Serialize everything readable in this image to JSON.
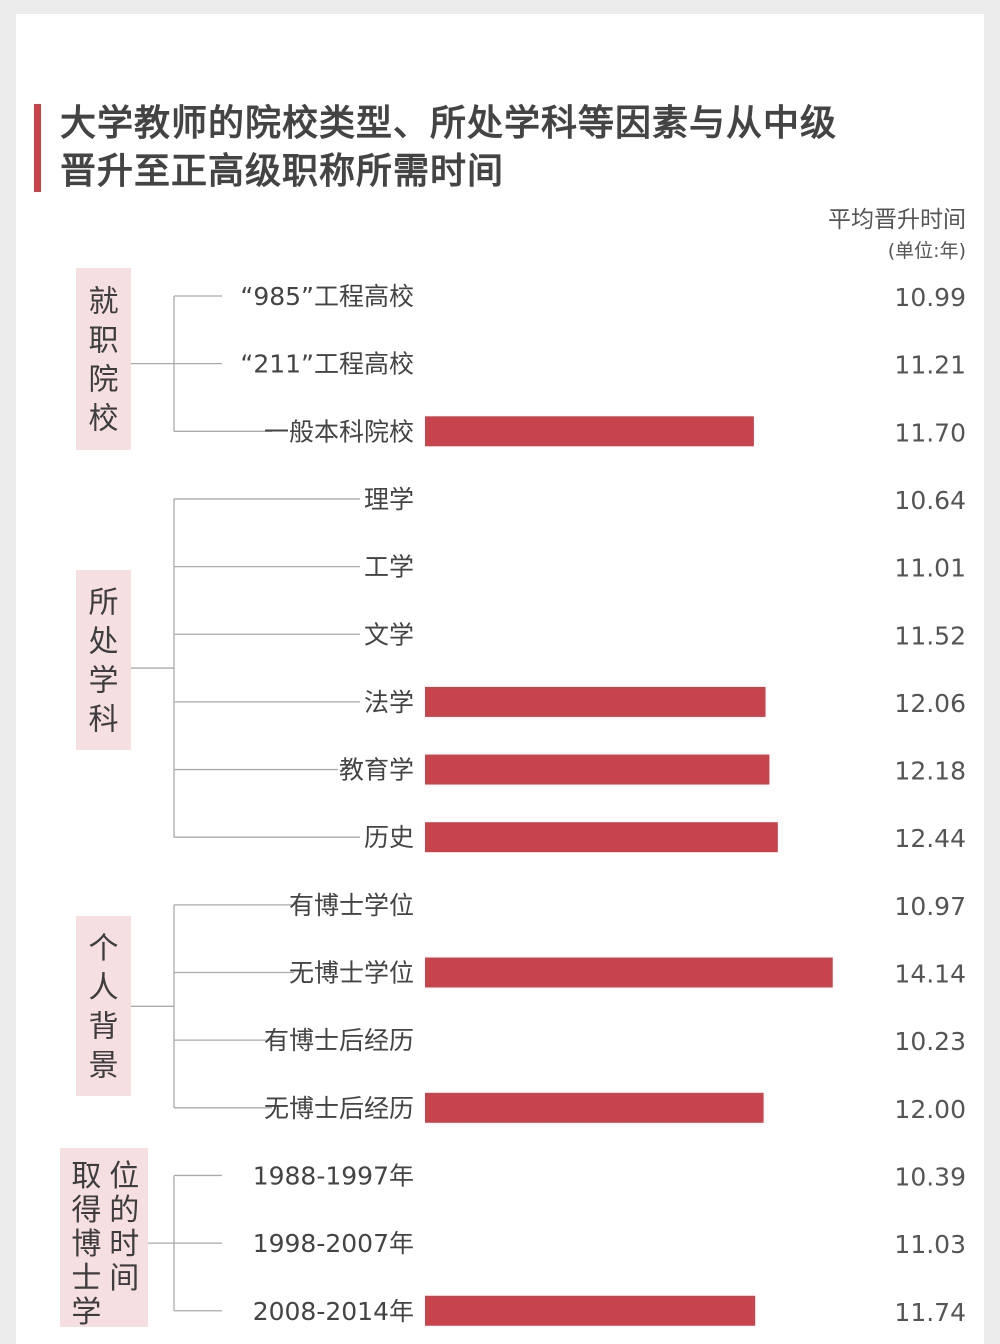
{
  "title": {
    "line1": "大学教师的院校类型、所处学科等因素与从中级",
    "line2": "晋升至正高级职称所需时间"
  },
  "unit": {
    "line1": "平均晋升时间",
    "line2": "(单位:年)"
  },
  "colors": {
    "bar": "#c8444c",
    "group_box": "#f6dfe1",
    "accent": "#c8444c"
  },
  "chart_data": {
    "type": "bar",
    "orientation": "horizontal",
    "title": "大学教师的院校类型、所处学科等因素与从中级晋升至正高级职称所需时间",
    "value_label": "平均晋升时间(单位:年)",
    "xlim": [
      0,
      15
    ],
    "groups": [
      {
        "name": "就职院校",
        "categories": [
          "“985”工程高校",
          "“211”工程高校",
          "一般本科院校"
        ],
        "values": [
          10.99,
          11.21,
          11.7
        ],
        "value_labels": [
          "10.99",
          "11.21",
          "11.70"
        ]
      },
      {
        "name": "所处学科",
        "categories": [
          "理学",
          "工学",
          "文学",
          "法学",
          "教育学",
          "历史"
        ],
        "values": [
          10.64,
          11.01,
          11.52,
          12.06,
          12.18,
          12.44
        ],
        "value_labels": [
          "10.64",
          "11.01",
          "11.52",
          "12.06",
          "12.18",
          "12.44"
        ]
      },
      {
        "name": "个人背景",
        "categories": [
          "有博士学位",
          "无博士学位",
          "有博士后经历",
          "无博士后经历"
        ],
        "values": [
          10.97,
          14.14,
          10.23,
          12.0
        ],
        "value_labels": [
          "10.97",
          "14.14",
          "10.23",
          "12.00"
        ]
      },
      {
        "name": "取得博士学位的时间",
        "label_columns": [
          "取得博士学",
          "位的时间"
        ],
        "categories": [
          "1988-1997年",
          "1998-2007年",
          "2008-2014年"
        ],
        "values": [
          10.39,
          11.03,
          11.74
        ],
        "value_labels": [
          "10.39",
          "11.03",
          "11.74"
        ]
      }
    ]
  }
}
